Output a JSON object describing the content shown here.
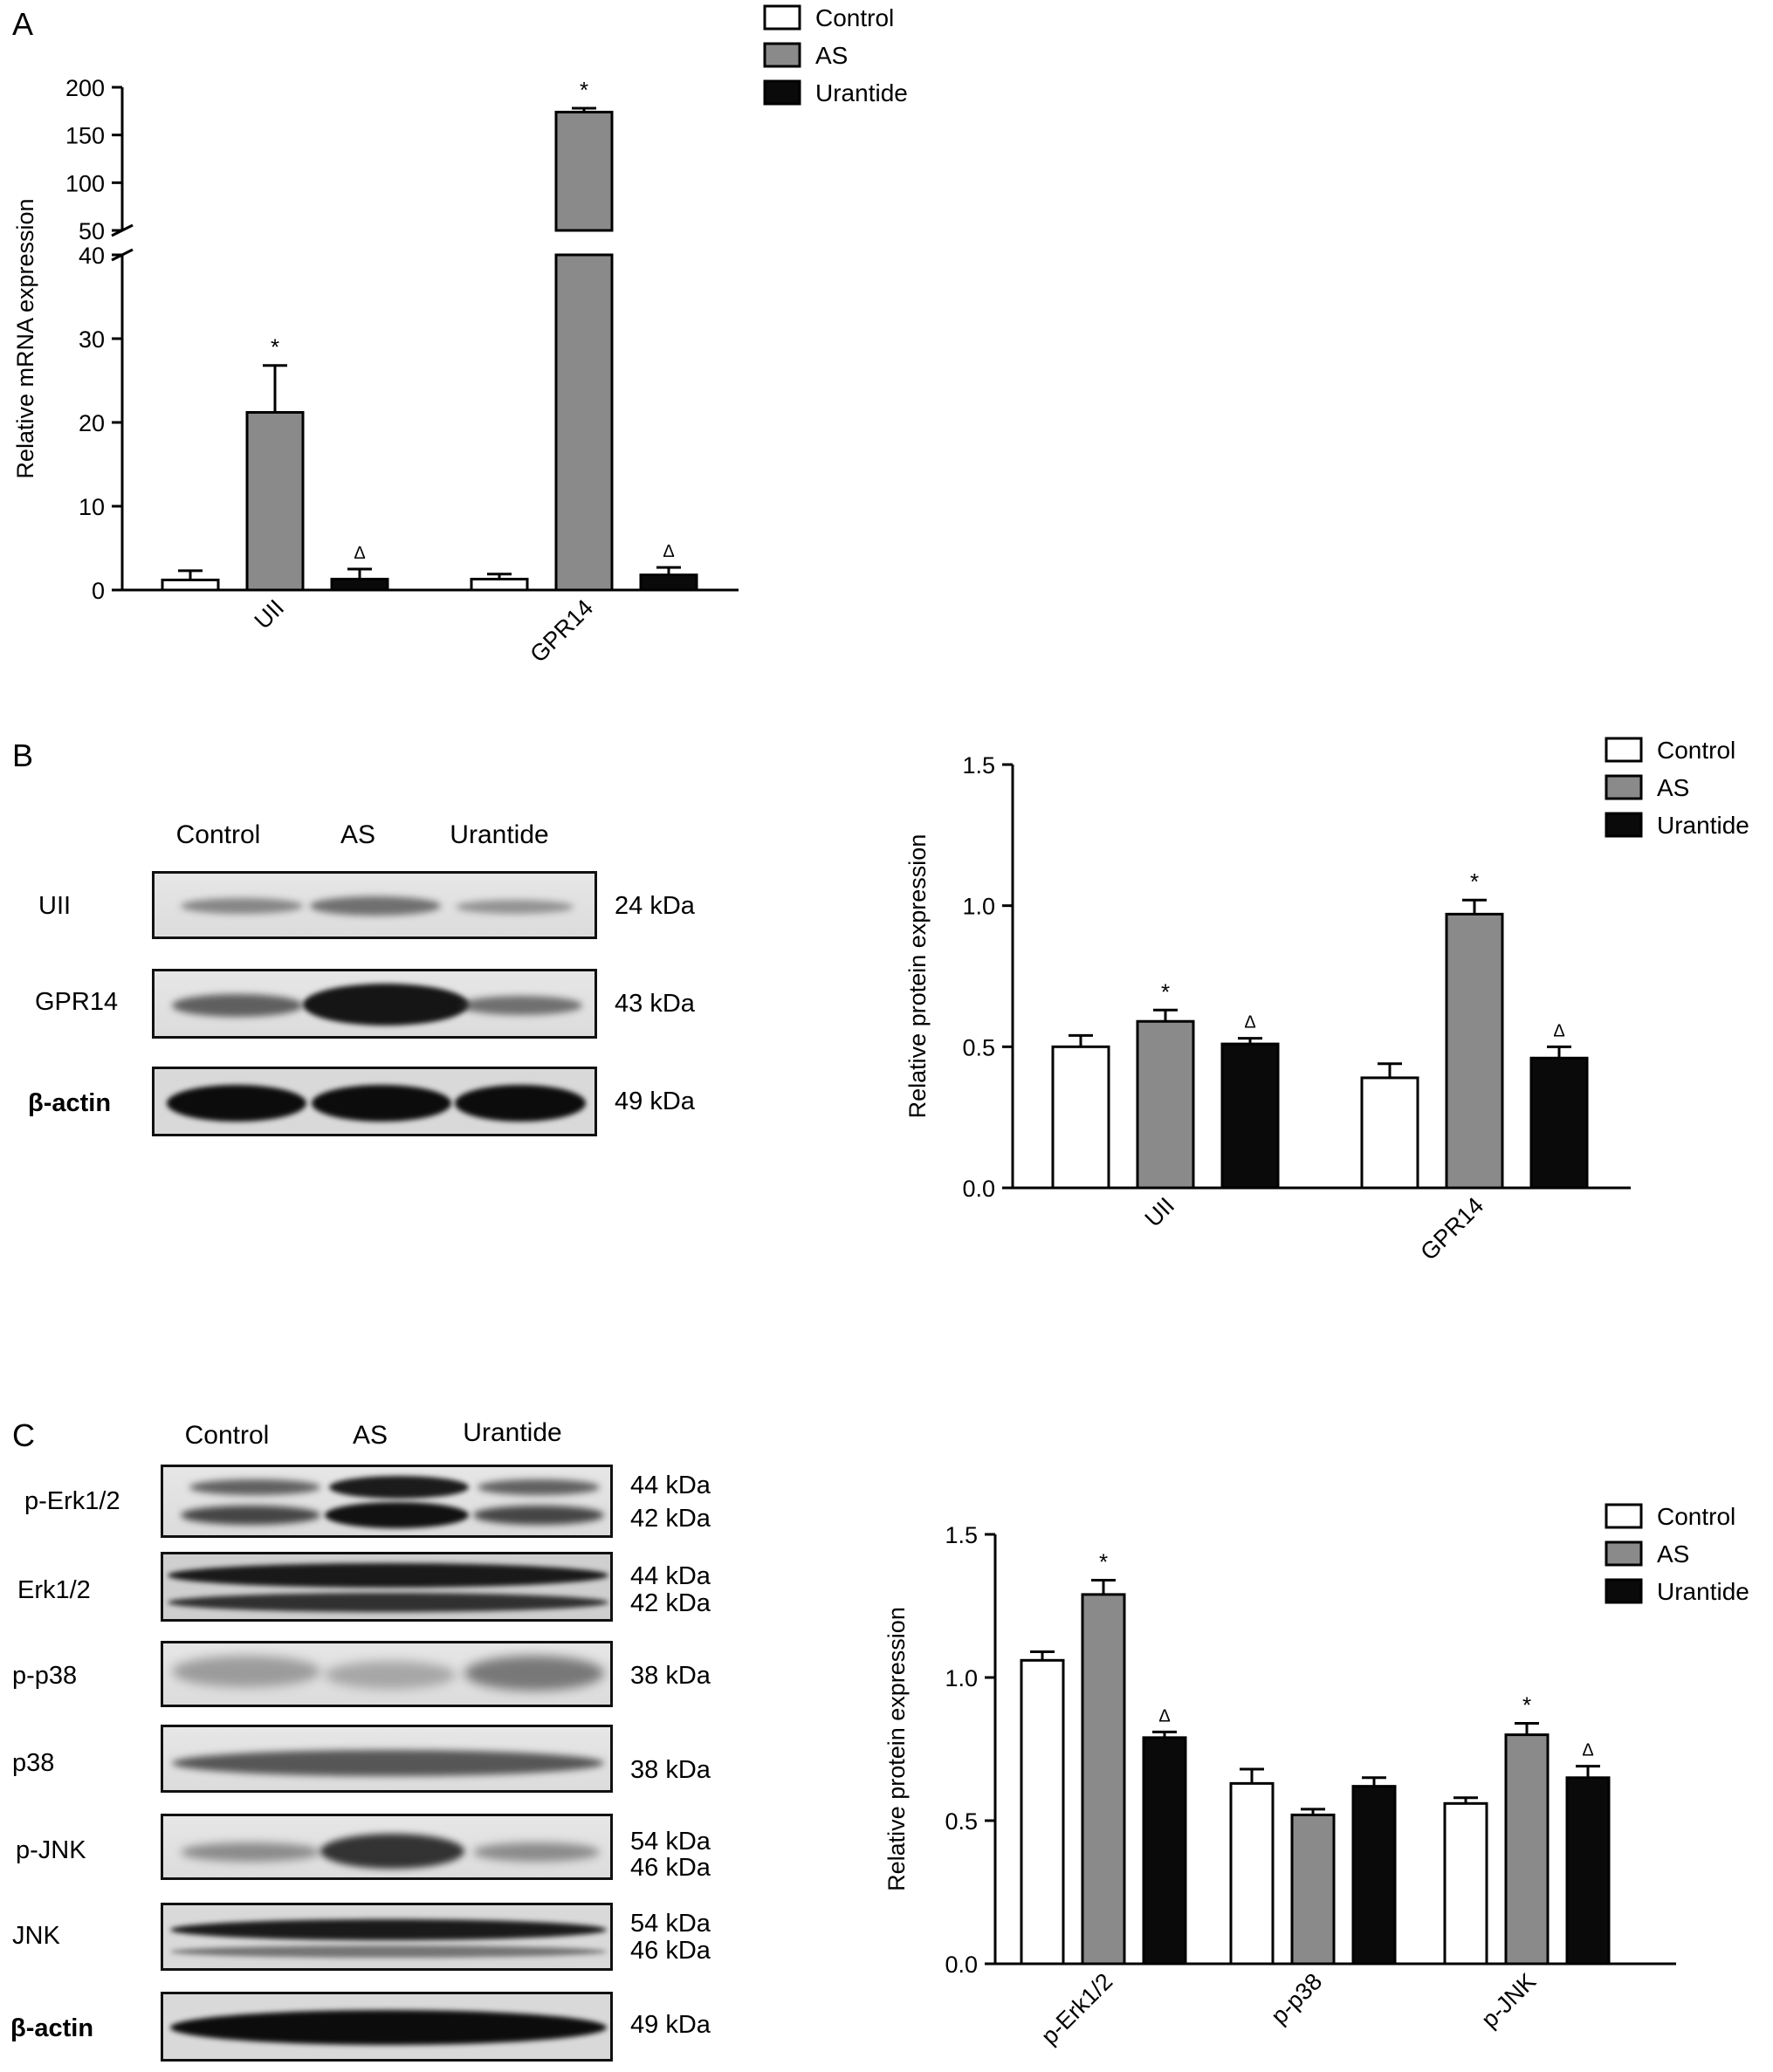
{
  "panels": {
    "a_letter": "A",
    "b_letter": "B",
    "c_letter": "C"
  },
  "legend": {
    "items": [
      "Control",
      "AS",
      "Urantide"
    ],
    "colors": [
      "#ffffff",
      "#8a8a8a",
      "#0a0a0a"
    ]
  },
  "chart_data": [
    {
      "id": "A",
      "type": "bar",
      "ylabel": "Relative mRNA expression",
      "categories": [
        "UII",
        "GPR14"
      ],
      "series": [
        {
          "name": "Control",
          "values": [
            1.2,
            1.3
          ],
          "errors": [
            1.1,
            0.6
          ],
          "marks": [
            "",
            ""
          ]
        },
        {
          "name": "AS",
          "values": [
            21.2,
            174
          ],
          "errors": [
            5.6,
            4
          ],
          "marks": [
            "*",
            "*"
          ]
        },
        {
          "name": "Urantide",
          "values": [
            1.3,
            1.8
          ],
          "errors": [
            1.2,
            0.9
          ],
          "marks": [
            "Δ",
            "Δ"
          ]
        }
      ],
      "axis_break": {
        "lower_range": [
          0,
          40
        ],
        "upper_range": [
          50,
          200
        ]
      },
      "yticks_lower": [
        "0",
        "10",
        "20",
        "30",
        "40"
      ],
      "yticks_upper": [
        "50",
        "100",
        "150",
        "200"
      ]
    },
    {
      "id": "B",
      "type": "bar",
      "ylabel": "Relative protein expression",
      "categories": [
        "UII",
        "GPR14"
      ],
      "ylim": [
        0,
        1.5
      ],
      "yticks": [
        "0.0",
        "0.5",
        "1.0",
        "1.5"
      ],
      "series": [
        {
          "name": "Control",
          "values": [
            0.5,
            0.39
          ],
          "errors": [
            0.04,
            0.05
          ],
          "marks": [
            "",
            ""
          ]
        },
        {
          "name": "AS",
          "values": [
            0.59,
            0.97
          ],
          "errors": [
            0.04,
            0.05
          ],
          "marks": [
            "*",
            "*"
          ]
        },
        {
          "name": "Urantide",
          "values": [
            0.51,
            0.46
          ],
          "errors": [
            0.02,
            0.04
          ],
          "marks": [
            "Δ",
            "Δ"
          ]
        }
      ]
    },
    {
      "id": "C",
      "type": "bar",
      "ylabel": "Relative protein expression",
      "categories": [
        "p-Erk1/2",
        "p-p38",
        "p-JNK"
      ],
      "ylim": [
        0,
        1.5
      ],
      "yticks": [
        "0.0",
        "0.5",
        "1.0",
        "1.5"
      ],
      "series": [
        {
          "name": "Control",
          "values": [
            1.06,
            0.63,
            0.56
          ],
          "errors": [
            0.03,
            0.05,
            0.02
          ],
          "marks": [
            "",
            "",
            ""
          ]
        },
        {
          "name": "AS",
          "values": [
            1.29,
            0.52,
            0.8
          ],
          "errors": [
            0.05,
            0.02,
            0.04
          ],
          "marks": [
            "*",
            "",
            "*"
          ]
        },
        {
          "name": "Urantide",
          "values": [
            0.79,
            0.62,
            0.65
          ],
          "errors": [
            0.02,
            0.03,
            0.04
          ],
          "marks": [
            "Δ",
            "",
            "Δ"
          ]
        }
      ]
    }
  ],
  "blot_b": {
    "lanes": [
      "Control",
      "AS",
      "Urantide"
    ],
    "rows": [
      {
        "label": "UII",
        "kda": "24 kDa",
        "bold": false
      },
      {
        "label": "GPR14",
        "kda": "43 kDa",
        "bold": false
      },
      {
        "label": "β-actin",
        "kda": "49 kDa",
        "bold": true
      }
    ]
  },
  "blot_c": {
    "lanes": [
      "Control",
      "AS",
      "Urantide"
    ],
    "rows": [
      {
        "label": "p-Erk1/2",
        "kda": [
          "44 kDa",
          "42 kDa"
        ],
        "bold": false
      },
      {
        "label": "Erk1/2",
        "kda": [
          "44 kDa",
          "42 kDa"
        ],
        "bold": false
      },
      {
        "label": "p-p38",
        "kda": [
          "38 kDa"
        ],
        "bold": false
      },
      {
        "label": "p38",
        "kda": [
          "38 kDa"
        ],
        "bold": false
      },
      {
        "label": "p-JNK",
        "kda": [
          "54 kDa",
          "46 kDa"
        ],
        "bold": false
      },
      {
        "label": "JNK",
        "kda": [
          "54 kDa",
          "46 kDa"
        ],
        "bold": false
      },
      {
        "label": "β-actin",
        "kda": [
          "49 kDa"
        ],
        "bold": true
      }
    ]
  }
}
